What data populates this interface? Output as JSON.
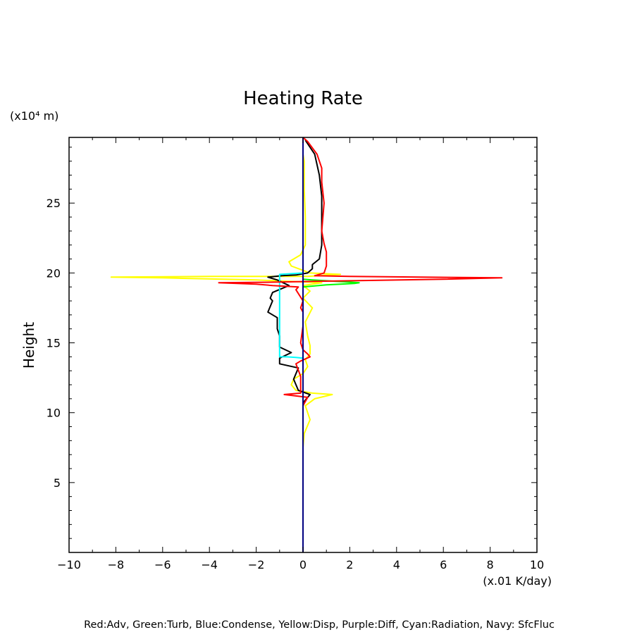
{
  "chart_data": {
    "type": "line",
    "title": "Heating Rate",
    "ylabel": "Height",
    "yunits": "(x10⁴ m)",
    "xunits": "(x.01 K/day)",
    "xlim": [
      -10,
      10
    ],
    "ylim": [
      0,
      29.7
    ],
    "xticks": [
      -10,
      -8,
      -6,
      -4,
      -2,
      0,
      2,
      4,
      6,
      8,
      10
    ],
    "xtick_labels": [
      "−10",
      "−8",
      "−6",
      "−4",
      "−2",
      "0",
      "2",
      "4",
      "6",
      "8",
      "10"
    ],
    "yticks": [
      5,
      10,
      15,
      20,
      25
    ],
    "ytick_labels": [
      "5",
      "10",
      "15",
      "20",
      "25"
    ],
    "grid": false,
    "footer": "Red:Adv, Green:Turb, Blue:Condense, Yellow:Disp, Purple:Diff, Cyan:Radiation, Navy: SfcFluc",
    "series": [
      {
        "color": "#ffff00",
        "points": [
          [
            0.0,
            7.5
          ],
          [
            0.05,
            8.5
          ],
          [
            0.3,
            9.5
          ],
          [
            0.1,
            10.5
          ],
          [
            0.5,
            11.0
          ],
          [
            1.25,
            11.3
          ],
          [
            0.4,
            11.4
          ],
          [
            -0.3,
            11.6
          ],
          [
            -0.5,
            12.0
          ],
          [
            -0.4,
            12.4
          ],
          [
            0.0,
            12.8
          ],
          [
            0.2,
            13.3
          ],
          [
            0.1,
            13.8
          ],
          [
            0.3,
            14.2
          ],
          [
            0.3,
            14.8
          ],
          [
            0.2,
            15.5
          ],
          [
            0.1,
            16.5
          ],
          [
            0.4,
            17.5
          ],
          [
            0.0,
            18.2
          ],
          [
            0.3,
            18.7
          ],
          [
            0.0,
            19.1
          ],
          [
            0.8,
            19.3
          ],
          [
            -2.0,
            19.5
          ],
          [
            -6.0,
            19.65
          ],
          [
            -8.2,
            19.7
          ],
          [
            -4.0,
            19.75
          ],
          [
            0.2,
            19.75
          ],
          [
            1.6,
            19.9
          ],
          [
            0.3,
            20.0
          ],
          [
            -0.5,
            20.5
          ],
          [
            -0.6,
            20.8
          ],
          [
            -0.1,
            21.3
          ],
          [
            0.1,
            22.0
          ],
          [
            0.1,
            24.0
          ],
          [
            0.05,
            26.0
          ],
          [
            0.05,
            27.0
          ],
          [
            0.05,
            28.0
          ],
          [
            0.0,
            28.5
          ]
        ]
      },
      {
        "color": "#000000",
        "points": [
          [
            0.0,
            10.7
          ],
          [
            0.3,
            11.3
          ],
          [
            -0.2,
            11.6
          ],
          [
            -0.4,
            12.4
          ],
          [
            -0.2,
            13.2
          ],
          [
            -1.0,
            13.5
          ],
          [
            -1.0,
            13.9
          ],
          [
            -0.5,
            14.3
          ],
          [
            -1.0,
            14.7
          ],
          [
            -1.0,
            15.5
          ],
          [
            -1.1,
            16.0
          ],
          [
            -1.1,
            16.8
          ],
          [
            -1.5,
            17.2
          ],
          [
            -1.3,
            18.0
          ],
          [
            -1.4,
            18.2
          ],
          [
            -1.3,
            18.6
          ],
          [
            -0.6,
            19.1
          ],
          [
            -1.1,
            19.5
          ],
          [
            -1.5,
            19.7
          ],
          [
            -0.9,
            19.8
          ],
          [
            -0.3,
            19.85
          ],
          [
            0.2,
            20.0
          ],
          [
            0.4,
            20.3
          ],
          [
            0.4,
            20.6
          ],
          [
            0.7,
            21.0
          ],
          [
            0.8,
            22.0
          ],
          [
            0.8,
            24.0
          ],
          [
            0.8,
            25.5
          ],
          [
            0.7,
            27.0
          ],
          [
            0.5,
            28.5
          ],
          [
            0.1,
            29.5
          ]
        ]
      },
      {
        "color": "#00ff00",
        "points": [
          [
            0.0,
            19.0
          ],
          [
            1.0,
            19.15
          ],
          [
            2.2,
            19.25
          ],
          [
            2.4,
            19.3
          ],
          [
            1.4,
            19.4
          ],
          [
            0.4,
            19.5
          ],
          [
            0.0,
            19.55
          ]
        ]
      },
      {
        "color": "#00ffff",
        "points": [
          [
            0.0,
            13.9
          ],
          [
            -0.3,
            13.95
          ],
          [
            -0.7,
            14.0
          ],
          [
            -1.0,
            14.0
          ],
          [
            -1.0,
            19.9
          ],
          [
            0.0,
            20.0
          ]
        ]
      },
      {
        "color": "#ff0000",
        "points": [
          [
            0.0,
            10.5
          ],
          [
            0.2,
            11.1
          ],
          [
            -0.8,
            11.3
          ],
          [
            -0.1,
            11.4
          ],
          [
            -0.1,
            12.6
          ],
          [
            -0.3,
            13.5
          ],
          [
            -0.1,
            13.7
          ],
          [
            0.3,
            14.0
          ],
          [
            0.2,
            14.2
          ],
          [
            0.0,
            14.5
          ],
          [
            -0.1,
            15.0
          ],
          [
            0.0,
            16.2
          ],
          [
            0.0,
            17.2
          ],
          [
            -0.1,
            17.5
          ],
          [
            0.0,
            18.0
          ],
          [
            -0.3,
            18.8
          ],
          [
            -0.2,
            19.0
          ],
          [
            -1.3,
            19.1
          ],
          [
            -2.0,
            19.2
          ],
          [
            -3.6,
            19.3
          ],
          [
            -1.0,
            19.35
          ],
          [
            0.5,
            19.4
          ],
          [
            6.0,
            19.55
          ],
          [
            8.5,
            19.65
          ],
          [
            2.0,
            19.75
          ],
          [
            0.5,
            19.8
          ],
          [
            0.9,
            20.0
          ],
          [
            1.0,
            20.5
          ],
          [
            1.0,
            21.5
          ],
          [
            0.9,
            22.1
          ],
          [
            0.8,
            23.0
          ],
          [
            0.9,
            25.0
          ],
          [
            0.8,
            26.5
          ],
          [
            0.8,
            27.5
          ],
          [
            0.6,
            28.5
          ],
          [
            0.2,
            29.4
          ],
          [
            0.0,
            29.7
          ]
        ]
      },
      {
        "color": "#000080",
        "points": [
          [
            0.0,
            0.0
          ],
          [
            0.0,
            29.7
          ]
        ]
      }
    ]
  }
}
